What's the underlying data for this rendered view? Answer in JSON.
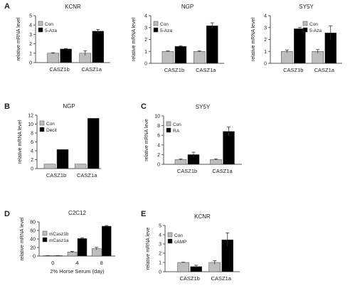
{
  "colors": {
    "con": "#bdbdbd",
    "treated": "#000000",
    "axis": "#555555",
    "error": "#333333"
  },
  "chart_data": [
    {
      "panel": "A",
      "type": "bar",
      "title": "KCNR",
      "ylabel": "relative mRNA level",
      "xlabel": "",
      "ylim": [
        0,
        5
      ],
      "yticks": [
        0,
        1,
        2,
        3,
        4,
        5
      ],
      "categories": [
        "CASZ1b",
        "CASZ1a"
      ],
      "series": [
        {
          "name": "Con",
          "color": "#bdbdbd",
          "values": [
            1.0,
            1.0
          ],
          "errors": [
            0.05,
            0.25
          ]
        },
        {
          "name": "5-Aza",
          "color": "#000000",
          "values": [
            1.45,
            3.35
          ],
          "errors": [
            0.05,
            0.18
          ]
        }
      ],
      "legend": "top-left"
    },
    {
      "panel": "",
      "type": "bar",
      "title": "NGP",
      "ylabel": "relative mRNA level",
      "xlabel": "",
      "ylim": [
        0,
        4
      ],
      "yticks": [
        0,
        1,
        2,
        3,
        4
      ],
      "categories": [
        "CASZ1b",
        "CASZ1a"
      ],
      "series": [
        {
          "name": "Con",
          "color": "#bdbdbd",
          "values": [
            1.0,
            1.0
          ],
          "errors": [
            0.04,
            0.04
          ]
        },
        {
          "name": "5-Aza",
          "color": "#000000",
          "values": [
            1.42,
            3.15
          ],
          "errors": [
            0.05,
            0.25
          ]
        }
      ],
      "legend": "top-left"
    },
    {
      "panel": "",
      "type": "bar",
      "title": "SY5Y",
      "ylabel": "relative mRNA level",
      "xlabel": "",
      "ylim": [
        0,
        4
      ],
      "yticks": [
        0,
        1,
        2,
        3,
        4
      ],
      "categories": [
        "CASZ1b",
        "CASZ1a"
      ],
      "series": [
        {
          "name": "Con",
          "color": "#bdbdbd",
          "values": [
            1.0,
            1.0
          ],
          "errors": [
            0.12,
            0.15
          ]
        },
        {
          "name": "5-Aza",
          "color": "#000000",
          "values": [
            2.9,
            2.55
          ],
          "errors": [
            0.1,
            0.6
          ]
        }
      ],
      "legend": "top-right"
    },
    {
      "panel": "B",
      "type": "bar",
      "title": "NGP",
      "ylabel": "relative mRNA level",
      "xlabel": "",
      "ylim": [
        0,
        12
      ],
      "yticks": [
        0,
        2,
        4,
        6,
        8,
        10,
        12
      ],
      "categories": [
        "CASZ1b",
        "CASZ1a"
      ],
      "series": [
        {
          "name": "Con",
          "color": "#bdbdbd",
          "values": [
            1.0,
            1.0
          ],
          "errors": [
            0,
            0
          ]
        },
        {
          "name": "Decit",
          "color": "#000000",
          "values": [
            4.3,
            11.3
          ],
          "errors": [
            0,
            0
          ]
        }
      ],
      "legend": "top-left"
    },
    {
      "panel": "C",
      "type": "bar",
      "title": "SY5Y",
      "ylabel": "relative mRNA leve",
      "xlabel": "",
      "ylim": [
        0,
        10
      ],
      "yticks": [
        0,
        2,
        4,
        6,
        8,
        10
      ],
      "categories": [
        "CASZ1b",
        "CASZ1a"
      ],
      "series": [
        {
          "name": "Con",
          "color": "#bdbdbd",
          "values": [
            1.0,
            1.0
          ],
          "errors": [
            0.12,
            0.12
          ]
        },
        {
          "name": "RA",
          "color": "#000000",
          "values": [
            2.0,
            6.8
          ],
          "errors": [
            0.5,
            0.9
          ]
        }
      ],
      "legend": "top-left"
    },
    {
      "panel": "D",
      "type": "bar",
      "title": "C2C12",
      "ylabel": "relative mRNA level",
      "xlabel": "2% Horse Serum (day)",
      "ylim": [
        0,
        80
      ],
      "yticks": [
        0,
        20,
        40,
        60,
        80
      ],
      "categories": [
        "0",
        "4",
        "8"
      ],
      "series": [
        {
          "name": "mCasz1b",
          "color": "#bdbdbd",
          "values": [
            1.0,
            9.5,
            17.5
          ],
          "errors": [
            0.3,
            1.5,
            3.0
          ]
        },
        {
          "name": "mCasz1a",
          "color": "#000000",
          "values": [
            1.0,
            41.0,
            70.0
          ],
          "errors": [
            0.3,
            2.0,
            1.5
          ]
        }
      ],
      "legend": "top-left"
    },
    {
      "panel": "E",
      "type": "bar",
      "title": "KCNR",
      "ylabel": "relative mRNA leve",
      "xlabel": "",
      "ylim": [
        0,
        5
      ],
      "yticks": [
        0,
        1,
        2,
        3,
        4,
        5
      ],
      "categories": [
        "CASZ1b",
        "CASZ1a"
      ],
      "series": [
        {
          "name": "Con",
          "color": "#bdbdbd",
          "values": [
            1.0,
            1.0
          ],
          "errors": [
            0.03,
            0.2
          ]
        },
        {
          "name": "cAMP",
          "color": "#000000",
          "values": [
            0.55,
            3.45
          ],
          "errors": [
            0.15,
            0.75
          ]
        }
      ],
      "legend": "top-left"
    }
  ]
}
